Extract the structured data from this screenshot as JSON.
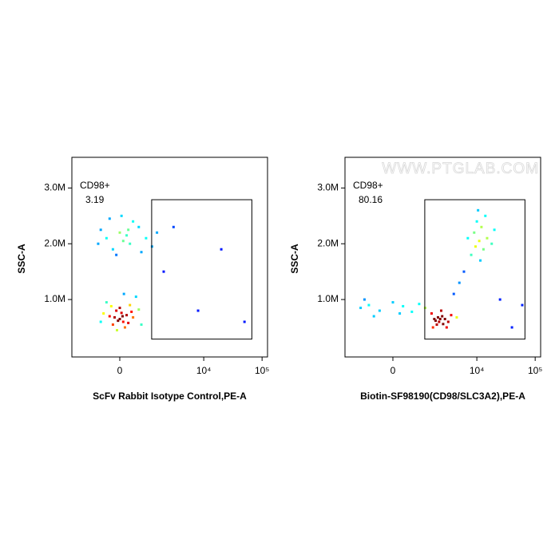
{
  "chart_data": [
    {
      "type": "scatter",
      "x_label": "ScFv Rabbit Isotype Control,PE-A",
      "y_label": "SSC-A",
      "xscale": "biexponential",
      "xlim": [
        -2360,
        124000
      ],
      "ylim": [
        -30000,
        3550000
      ],
      "xticks": [
        0,
        {
          "value": 10000,
          "label": "10⁴"
        },
        {
          "value": 100000,
          "label": "10⁵"
        }
      ],
      "yticks": [
        {
          "value": 1000000,
          "label": "1.0M"
        },
        {
          "value": 2000000,
          "label": "2.0M"
        },
        {
          "value": 3000000,
          "label": "3.0M"
        }
      ],
      "gate": {
        "x": [
          1180,
          66800
        ],
        "y": [
          290000,
          2790000
        ],
        "label": "CD98+",
        "value": 3.19
      },
      "x": [
        -300,
        0,
        200,
        -100,
        100,
        400,
        -500,
        300,
        -200,
        50,
        600,
        -400,
        150,
        0,
        250,
        -150,
        500,
        -600,
        80,
        -50,
        350,
        -250,
        700,
        120,
        -80,
        -400,
        0,
        300,
        -200,
        600,
        100,
        -600,
        900,
        400,
        -100,
        200,
        1200,
        -300,
        700,
        50,
        1500,
        -700,
        250,
        3000,
        8000,
        20000,
        2000,
        50000
      ],
      "y": [
        700000,
        650000,
        720000,
        800000,
        600000,
        680000,
        750000,
        900000,
        550000,
        760000,
        820000,
        950000,
        500000,
        850000,
        580000,
        680000,
        1050000,
        600000,
        700000,
        620000,
        780000,
        880000,
        550000,
        1100000,
        450000,
        2100000,
        2200000,
        2000000,
        1900000,
        2300000,
        2050000,
        2250000,
        2100000,
        2400000,
        1800000,
        2150000,
        1950000,
        2450000,
        1850000,
        2500000,
        2200000,
        2000000,
        2250000,
        2300000,
        800000,
        1900000,
        1500000,
        600000
      ]
    },
    {
      "type": "scatter",
      "x_label": "Biotin-SF98190(CD98/SLC3A2),PE-A",
      "y_label": "SSC-A",
      "xscale": "biexponential",
      "watermark": "WWW.PTGLAB.COM",
      "xlim": [
        -2360,
        124000
      ],
      "ylim": [
        -30000,
        3550000
      ],
      "xticks": [
        0,
        {
          "value": 10000,
          "label": "10⁴"
        },
        {
          "value": 100000,
          "label": "10⁵"
        }
      ],
      "yticks": [
        {
          "value": 1000000,
          "label": "1.0M"
        },
        {
          "value": 2000000,
          "label": "2.0M"
        },
        {
          "value": 3000000,
          "label": "3.0M"
        }
      ],
      "gate": {
        "x": [
          1180,
          66800
        ],
        "y": [
          290000,
          2790000
        ],
        "label": "CD98+",
        "value": 80.16
      },
      "x": [
        -1200,
        -800,
        -400,
        0,
        300,
        600,
        900,
        -600,
        1200,
        -1000,
        200,
        1800,
        2200,
        2500,
        2000,
        2800,
        1600,
        3200,
        2400,
        2100,
        3000,
        1900,
        2600,
        3600,
        2300,
        1700,
        4500,
        11000,
        9000,
        13000,
        10000,
        15000,
        8000,
        12000,
        18000,
        7000,
        11500,
        14000,
        9500,
        20000,
        10500,
        5000,
        25000,
        4000,
        60000,
        40000,
        6000
      ],
      "y": [
        850000,
        900000,
        800000,
        950000,
        880000,
        780000,
        920000,
        700000,
        850000,
        1000000,
        750000,
        650000,
        600000,
        700000,
        550000,
        650000,
        750000,
        600000,
        800000,
        680000,
        500000,
        620000,
        560000,
        720000,
        650000,
        500000,
        680000,
        2050000,
        2200000,
        1900000,
        2400000,
        2100000,
        1800000,
        2300000,
        2000000,
        2100000,
        1700000,
        2500000,
        1950000,
        2250000,
        2600000,
        1300000,
        1000000,
        1100000,
        900000,
        500000,
        1500000
      ]
    }
  ]
}
